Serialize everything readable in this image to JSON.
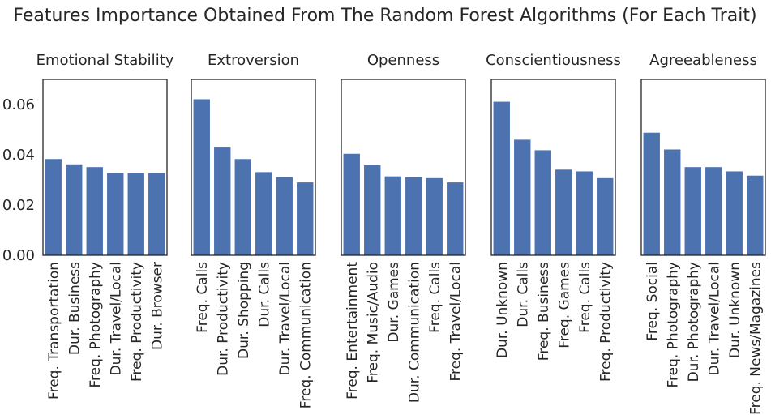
{
  "title": "Features Importance Obtained From The Random Forest Algorithms (For Each Trait)",
  "colors": {
    "bar": "#4c72b0",
    "text": "#262626"
  },
  "chart_data": {
    "type": "bar",
    "ylim": [
      0,
      0.07
    ],
    "yticks": [
      0.0,
      0.02,
      0.04,
      0.06
    ],
    "ytick_labels": [
      "0.00",
      "0.02",
      "0.04",
      "0.06"
    ],
    "grid": false,
    "panels": [
      {
        "title": "Emotional Stability",
        "categories": [
          "Freq. Transportation",
          "Dur. Business",
          "Freq. Photography",
          "Dur. Travel/Local",
          "Freq. Productivity",
          "Dur. Browser"
        ],
        "values": [
          0.0383,
          0.0362,
          0.0351,
          0.0327,
          0.0327,
          0.0327
        ]
      },
      {
        "title": "Extroversion",
        "categories": [
          "Freq. Calls",
          "Dur. Productivity",
          "Dur. Shopping",
          "Dur. Calls",
          "Dur. Travel/Local",
          "Freq. Communication"
        ],
        "values": [
          0.0621,
          0.0432,
          0.0383,
          0.0331,
          0.0311,
          0.029
        ]
      },
      {
        "title": "Openness",
        "categories": [
          "Freq. Entertainment",
          "Freq. Music/Audio",
          "Dur. Games",
          "Dur. Communication",
          "Freq. Calls",
          "Freq. Travel/Local"
        ],
        "values": [
          0.0404,
          0.0358,
          0.0314,
          0.0311,
          0.0307,
          0.029
        ]
      },
      {
        "title": "Conscientiousness",
        "categories": [
          "Dur. Unknown",
          "Dur. Calls",
          "Freq. Business",
          "Freq. Games",
          "Freq. Calls",
          "Freq. Productivity"
        ],
        "values": [
          0.0611,
          0.046,
          0.0418,
          0.0341,
          0.0334,
          0.0307
        ]
      },
      {
        "title": "Agreeableness",
        "categories": [
          "Freq. Social",
          "Freq. Photography",
          "Dur. Photography",
          "Dur. Travel/Local",
          "Dur. Unknown",
          "Freq. News/Magazines"
        ],
        "values": [
          0.0488,
          0.0421,
          0.0351,
          0.0351,
          0.0334,
          0.0317
        ]
      }
    ]
  }
}
